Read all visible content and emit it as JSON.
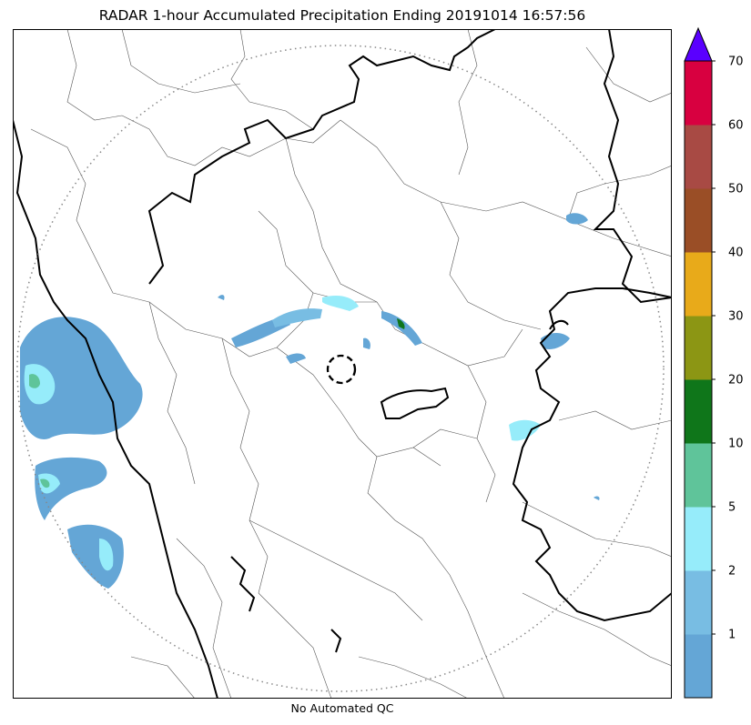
{
  "title": "RADAR 1-hour Accumulated Precipitation Ending 20191014 16:57:56",
  "footer": "No Automated QC",
  "colorbar": {
    "levels": [
      {
        "label": "",
        "color": "#64a6d6"
      },
      {
        "label": "1",
        "color": "#78bde3"
      },
      {
        "label": "2",
        "color": "#96ecfa"
      },
      {
        "label": "5",
        "color": "#5fc49a"
      },
      {
        "label": "10",
        "color": "#0f761a"
      },
      {
        "label": "20",
        "color": "#8c9614"
      },
      {
        "label": "30",
        "color": "#e8aa1a"
      },
      {
        "label": "40",
        "color": "#9a4e26"
      },
      {
        "label": "50",
        "color": "#a84a44"
      },
      {
        "label": "60",
        "color": "#d80040"
      },
      {
        "label": "70",
        "color": "#5a00ff"
      }
    ],
    "extend": "max"
  },
  "map": {
    "radar_range_ring": "dotted circle",
    "radar_site_marker": "dashed circle"
  }
}
